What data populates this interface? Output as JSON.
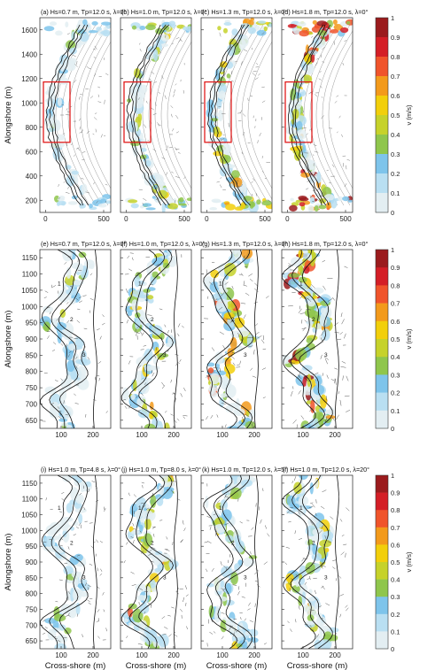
{
  "chart_data": {
    "type": "heatmap",
    "colorbar": {
      "label": "v (m/s)",
      "ticks": [
        "1",
        "0.9",
        "0.8",
        "0.7",
        "0.6",
        "0.5",
        "0.4",
        "0.3",
        "0.2",
        "0.1",
        "0"
      ],
      "colors": [
        "#ffffff",
        "#e3eef2",
        "#b9dff2",
        "#7ec4eb",
        "#8fc64c",
        "#c6d22a",
        "#f2cf0b",
        "#f39a1b",
        "#f0542b",
        "#d41e26",
        "#9b1b1d"
      ]
    },
    "rows": [
      {
        "ylabel": "Alongshore (m)",
        "xlabel": "",
        "yticks": [
          "1600",
          "1400",
          "1200",
          "1000",
          "800",
          "600",
          "400",
          "200"
        ],
        "xticks": [
          "0",
          "500"
        ],
        "panels": [
          {
            "title": "(a) Hs=0.7 m, Tp=12.0 s, λ=0°",
            "intensity": 0.35
          },
          {
            "title": "(b) Hs=1.0 m, Tp=12.0 s, λ=0°",
            "intensity": 0.5
          },
          {
            "title": "(c) Hs=1.3 m, Tp=12.0 s, λ=0°",
            "intensity": 0.65
          },
          {
            "title": "(d) Hs=1.8 m, Tp=12.0 s, λ=0°",
            "intensity": 0.9
          }
        ]
      },
      {
        "ylabel": "Alongshore (m)",
        "xlabel": "",
        "yticks": [
          "1150",
          "1100",
          "1050",
          "1000",
          "950",
          "900",
          "850",
          "800",
          "750",
          "700",
          "650"
        ],
        "xticks": [
          "100",
          "200"
        ],
        "panels": [
          {
            "title": "(e) Hs=0.7 m, Tp=12.0 s, λ=0°",
            "intensity": 0.35
          },
          {
            "title": "(f) Hs=1.0 m, Tp=12.0 s, λ=0°",
            "intensity": 0.55
          },
          {
            "title": "(g) Hs=1.3 m, Tp=12.0 s, λ=0°",
            "intensity": 0.7
          },
          {
            "title": "(h) Hs=1.8 m, Tp=12.0 s, λ=0°",
            "intensity": 0.95
          }
        ]
      },
      {
        "ylabel": "Alongshore (m)",
        "xlabel": "Cross-shore (m)",
        "yticks": [
          "1150",
          "1100",
          "1050",
          "1000",
          "950",
          "900",
          "850",
          "800",
          "750",
          "700",
          "650"
        ],
        "xticks": [
          "100",
          "200"
        ],
        "panels": [
          {
            "title": "(i) Hs=1.0 m, Tp=4.8 s, λ=0°",
            "intensity": 0.3
          },
          {
            "title": "(j) Hs=1.0 m, Tp=8.0 s, λ=0°",
            "intensity": 0.6
          },
          {
            "title": "(k) Hs=1.0 m, Tp=12.0 s, λ=5°",
            "intensity": 0.5
          },
          {
            "title": "(l) Hs=1.0 m, Tp=12.0 s, λ=20°",
            "intensity": 0.6
          }
        ]
      }
    ],
    "contour_labels": [
      "0",
      "1",
      "2",
      "3"
    ]
  }
}
